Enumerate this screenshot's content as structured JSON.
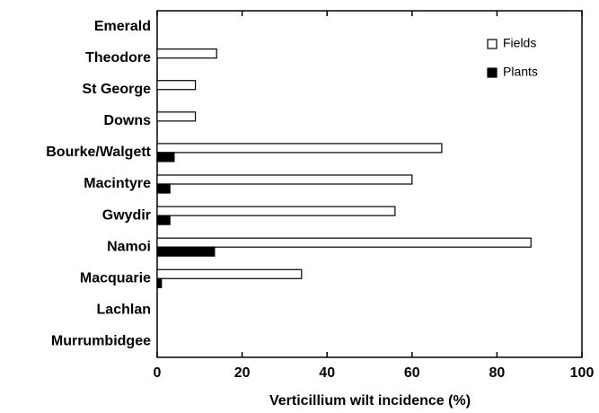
{
  "chart_data": {
    "type": "barh",
    "xlabel": "Verticillium wilt incidence (%)",
    "categories": [
      "Emerald",
      "Theodore",
      "St George",
      "Downs",
      "Bourke/Walgett",
      "Macintyre",
      "Gwydir",
      "Namoi",
      "Macquarie",
      "Lachlan",
      "Murrumbidgee"
    ],
    "series": [
      {
        "name": "Fields",
        "color": "#ffffff",
        "values": [
          0,
          14,
          9,
          9,
          67,
          60,
          56,
          88,
          34,
          0,
          0
        ]
      },
      {
        "name": "Plants",
        "color": "#000000",
        "values": [
          0,
          0,
          0,
          0,
          4,
          3,
          3,
          13.5,
          1,
          0,
          0
        ]
      }
    ],
    "xlim": [
      0,
      100
    ],
    "xticks": [
      0,
      20,
      40,
      60,
      80,
      100
    ],
    "legend": "upper right"
  }
}
